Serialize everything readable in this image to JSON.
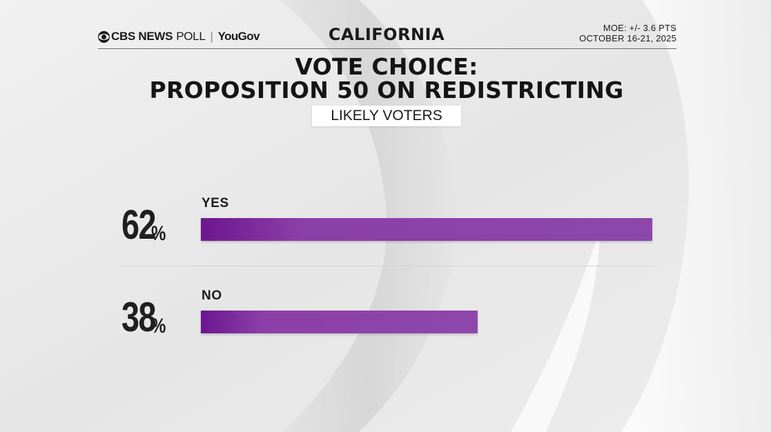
{
  "header": {
    "brand_cbs": "CBS NEWS",
    "brand_poll": "POLL",
    "brand_sep": "|",
    "brand_partner": "YouGov",
    "state": "CALIFORNIA",
    "moe": "MOE: +/- 3.6 PTS",
    "dates": "OCTOBER 16-21, 2025"
  },
  "colors": {
    "bar_dark": "#6d168f",
    "bar_light": "#8d47ab",
    "text": "#1a1a1a"
  },
  "chart_data": {
    "type": "bar",
    "orientation": "horizontal",
    "title": "VOTE CHOICE: PROPOSITION 50 ON REDISTRICTING",
    "title_lines": [
      "VOTE CHOICE:",
      "PROPOSITION 50 ON REDISTRICTING"
    ],
    "subtitle": "LIKELY VOTERS",
    "categories": [
      "YES",
      "NO"
    ],
    "values": [
      62,
      38
    ],
    "unit": "%",
    "xlim": [
      0,
      62
    ],
    "xlabel": "",
    "ylabel": ""
  }
}
